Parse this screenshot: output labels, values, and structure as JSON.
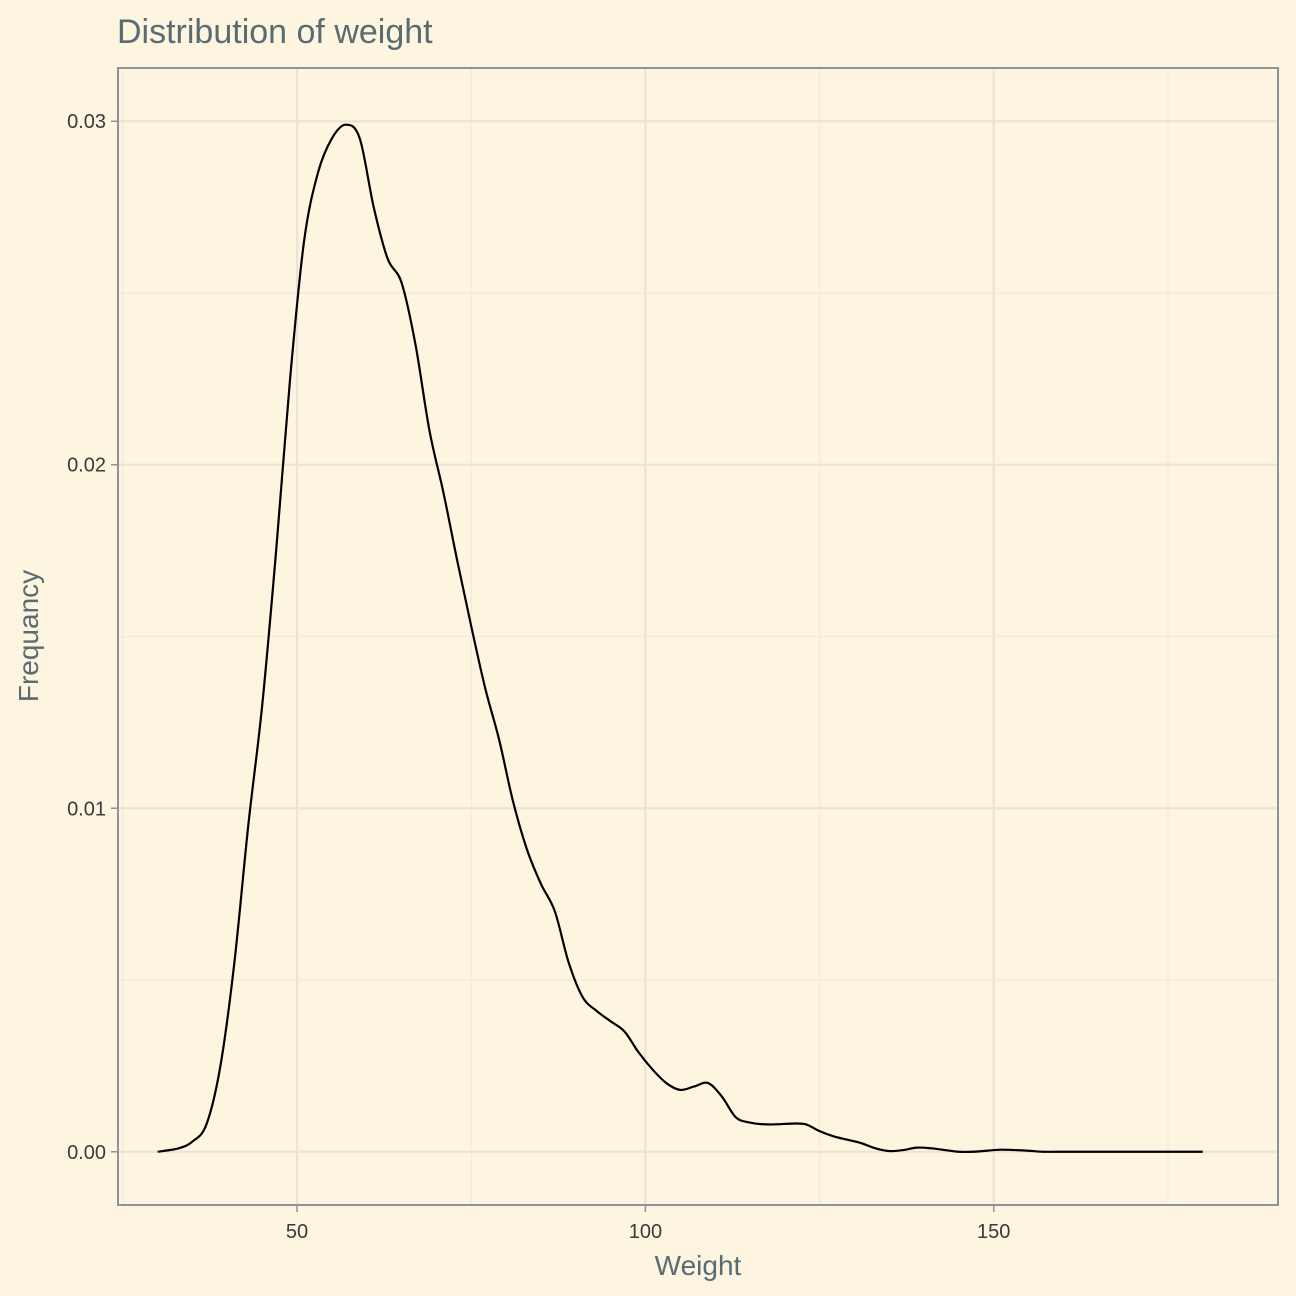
{
  "chart_data": {
    "type": "line",
    "title": "Distribution of weight",
    "xlabel": "Weight",
    "ylabel": "Frequancy",
    "xlim": [
      24.3,
      190.8
    ],
    "ylim": [
      -0.00155,
      0.03155
    ],
    "x_ticks": [
      50,
      100,
      150
    ],
    "x_tick_labels": [
      "50",
      "100",
      "150"
    ],
    "y_ticks": [
      0.0,
      0.01,
      0.02,
      0.03
    ],
    "y_tick_labels": [
      "0.00",
      "0.01",
      "0.02",
      "0.03"
    ],
    "grid": true,
    "series": [
      {
        "x": [
          30,
          33,
          35,
          37,
          39,
          41,
          43,
          45,
          47,
          49,
          51,
          53,
          55,
          57,
          59,
          61,
          63,
          65,
          67,
          69,
          71,
          73,
          75,
          77,
          79,
          81,
          83,
          85,
          87,
          89,
          91,
          93,
          95,
          97,
          99,
          101,
          103,
          105,
          107,
          109,
          111,
          113,
          115,
          117,
          119,
          121,
          123,
          125,
          127,
          129,
          131,
          133,
          135,
          137,
          139,
          141,
          143,
          145,
          147,
          149,
          151,
          153,
          155,
          157,
          159,
          162,
          165,
          170,
          175,
          180
        ],
        "values": [
          0.0,
          0.0001,
          0.0003,
          0.0008,
          0.0025,
          0.0055,
          0.0095,
          0.013,
          0.0175,
          0.0225,
          0.0265,
          0.0285,
          0.0295,
          0.0299,
          0.0295,
          0.0275,
          0.026,
          0.0253,
          0.0235,
          0.021,
          0.0192,
          0.0172,
          0.0153,
          0.0135,
          0.012,
          0.0102,
          0.0088,
          0.0078,
          0.007,
          0.0055,
          0.0045,
          0.0041,
          0.0038,
          0.0035,
          0.0029,
          0.0024,
          0.002,
          0.0018,
          0.0019,
          0.002,
          0.0016,
          0.001,
          0.00085,
          0.0008,
          0.0008,
          0.00082,
          0.0008,
          0.0006,
          0.00045,
          0.00035,
          0.00025,
          0.0001,
          2e-05,
          5e-05,
          0.00012,
          0.0001,
          5e-05,
          0.0,
          0.0,
          3e-05,
          6e-05,
          5e-05,
          3e-05,
          0.0,
          0.0,
          0.0,
          0.0,
          0.0,
          0.0,
          0.0
        ]
      }
    ]
  }
}
